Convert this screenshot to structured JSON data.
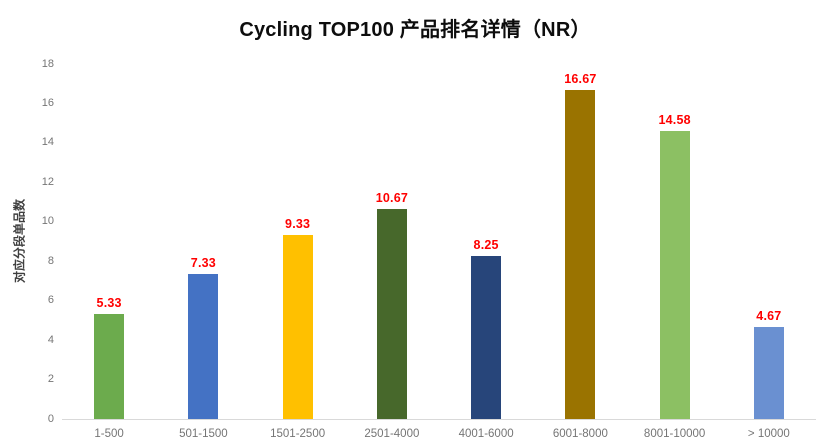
{
  "chart_data": {
    "type": "bar",
    "title": "Cycling TOP100 产品排名详情（NR）",
    "xlabel": "",
    "ylabel": "对应分段单品数",
    "categories": [
      "1-500",
      "501-1500",
      "1501-2500",
      "2501-4000",
      "4001-6000",
      "6001-8000",
      "8001-10000",
      "> 10000"
    ],
    "values": [
      5.33,
      7.33,
      9.33,
      10.67,
      8.25,
      16.67,
      14.58,
      4.67
    ],
    "data_labels": [
      "5.33",
      "7.33",
      "9.33",
      "10.67",
      "8.25",
      "16.67",
      "14.58",
      "4.67"
    ],
    "bar_colors": [
      "#6CAB4D",
      "#4472C4",
      "#FFC000",
      "#47682B",
      "#27457A",
      "#9A7300",
      "#8CC063",
      "#6A90D1"
    ],
    "ylim": [
      0,
      18
    ],
    "yticks": [
      0,
      2,
      4,
      6,
      8,
      10,
      12,
      14,
      16,
      18
    ],
    "grid": false,
    "legend_position": "none",
    "colors": {
      "data_label": "#FF0000",
      "tick_label": "#757575",
      "axis_line": "#D9D9D9",
      "title": "#0D0D0D",
      "y_axis_title": "#3F3F3F",
      "background": "#FFFFFF"
    }
  }
}
